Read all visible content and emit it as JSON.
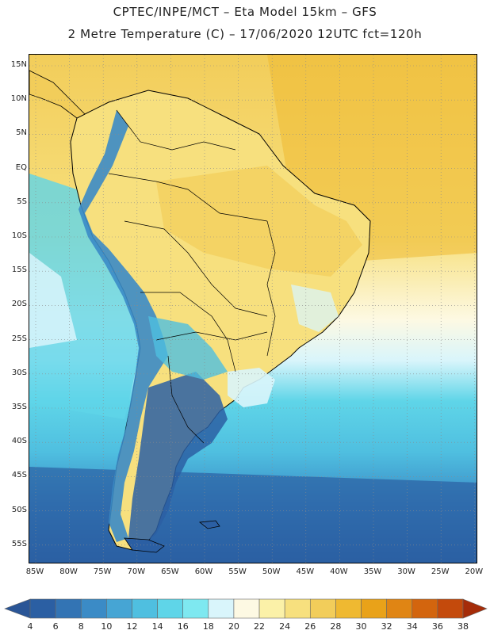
{
  "header": {
    "line1": "CPTEC/INPE/MCT –  Eta Model 15km – GFS",
    "line2": "2 Metre Temperature (C) – 17/06/2020 12UTC fct=120h"
  },
  "lat_labels": [
    "15N",
    "10N",
    "5N",
    "EQ",
    "5S",
    "10S",
    "15S",
    "20S",
    "25S",
    "30S",
    "35S",
    "40S",
    "45S",
    "50S",
    "55S"
  ],
  "lon_labels": [
    "85W",
    "80W",
    "75W",
    "70W",
    "65W",
    "60W",
    "55W",
    "50W",
    "45W",
    "40W",
    "35W",
    "30W",
    "25W",
    "20W"
  ],
  "colorbar": {
    "labels": [
      "4",
      "6",
      "8",
      "10",
      "12",
      "14",
      "16",
      "18",
      "20",
      "22",
      "24",
      "26",
      "28",
      "30",
      "32",
      "34",
      "36",
      "38"
    ],
    "colors": [
      "#2b5fa3",
      "#3374b4",
      "#3b8bc6",
      "#46a5d4",
      "#4fbfe0",
      "#5fd5e8",
      "#7ee8f0",
      "#d9f5fb",
      "#fdf9e3",
      "#fbf1a8",
      "#f7e07e",
      "#f2cd5a",
      "#efb931",
      "#e9a219",
      "#e08514",
      "#d3650e",
      "#c44a0c",
      "#a8320a"
    ],
    "under_color": "#2a5596",
    "over_color": "#a52c09"
  }
}
